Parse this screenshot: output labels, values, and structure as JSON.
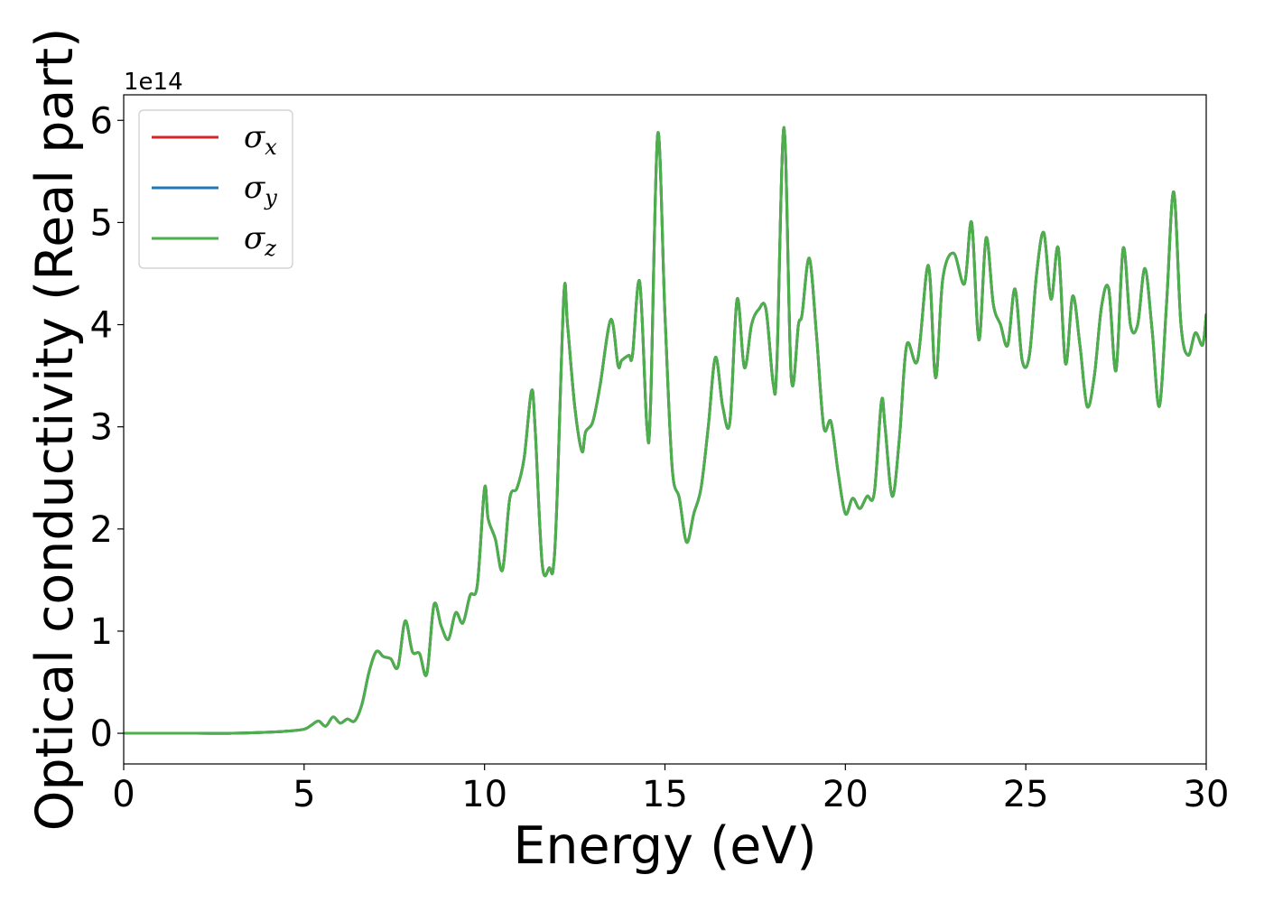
{
  "chart_data": {
    "type": "line",
    "xlabel": "Energy (eV)",
    "ylabel": "Optical conductivity (Real part)",
    "y_offset_label": "1e14",
    "xlim": [
      0,
      30
    ],
    "ylim": [
      -0.3,
      6.25
    ],
    "x_ticks": [
      0,
      5,
      10,
      15,
      20,
      25,
      30
    ],
    "y_ticks": [
      0,
      1,
      2,
      3,
      4,
      5,
      6
    ],
    "grid": false,
    "legend_position": "upper-left",
    "series": [
      {
        "name": "σx",
        "base": "σ",
        "sub": "x",
        "color": "#d62728"
      },
      {
        "name": "σy",
        "base": "σ",
        "sub": "y",
        "color": "#1f77b4"
      },
      {
        "name": "σz",
        "base": "σ",
        "sub": "z",
        "color": "#4daf4a"
      }
    ],
    "x": [
      0,
      1,
      2,
      3,
      4,
      4.5,
      5,
      5.2,
      5.4,
      5.6,
      5.8,
      6.0,
      6.2,
      6.4,
      6.6,
      6.8,
      7.0,
      7.2,
      7.4,
      7.6,
      7.8,
      8.0,
      8.2,
      8.4,
      8.6,
      8.8,
      9.0,
      9.2,
      9.4,
      9.6,
      9.8,
      10.0,
      10.1,
      10.3,
      10.5,
      10.7,
      10.9,
      11.1,
      11.3,
      11.4,
      11.6,
      11.8,
      11.9,
      12.0,
      12.2,
      12.3,
      12.5,
      12.7,
      12.8,
      13.0,
      13.2,
      13.5,
      13.7,
      13.8,
      14.0,
      14.1,
      14.3,
      14.5,
      14.6,
      14.8,
      15.0,
      15.2,
      15.4,
      15.6,
      15.8,
      16.0,
      16.2,
      16.4,
      16.6,
      16.8,
      17.0,
      17.2,
      17.4,
      17.6,
      17.8,
      18.0,
      18.1,
      18.3,
      18.5,
      18.7,
      18.8,
      19.0,
      19.2,
      19.4,
      19.6,
      19.8,
      20.0,
      20.2,
      20.4,
      20.6,
      20.8,
      21.0,
      21.1,
      21.3,
      21.5,
      21.7,
      22.0,
      22.3,
      22.5,
      22.7,
      23.0,
      23.3,
      23.5,
      23.7,
      23.9,
      24.1,
      24.3,
      24.5,
      24.7,
      24.9,
      25.1,
      25.3,
      25.5,
      25.7,
      25.9,
      26.1,
      26.3,
      26.5,
      26.7,
      26.9,
      27.1,
      27.3,
      27.5,
      27.7,
      27.9,
      28.1,
      28.3,
      28.5,
      28.7,
      28.9,
      29.1,
      29.3,
      29.5,
      29.7,
      29.9,
      30.0
    ],
    "values": [
      0,
      0,
      0,
      0,
      0.01,
      0.02,
      0.04,
      0.08,
      0.12,
      0.07,
      0.16,
      0.1,
      0.14,
      0.12,
      0.28,
      0.6,
      0.8,
      0.75,
      0.73,
      0.65,
      1.1,
      0.8,
      0.78,
      0.58,
      1.26,
      1.05,
      0.92,
      1.18,
      1.08,
      1.35,
      1.45,
      2.4,
      2.1,
      1.9,
      1.6,
      2.3,
      2.4,
      2.7,
      3.35,
      3.0,
      1.65,
      1.62,
      1.6,
      2.2,
      4.3,
      4.0,
      3.2,
      2.76,
      2.95,
      3.05,
      3.4,
      4.05,
      3.6,
      3.65,
      3.7,
      3.7,
      4.42,
      3.0,
      3.2,
      5.87,
      4.1,
      2.6,
      2.3,
      1.87,
      2.15,
      2.4,
      3.0,
      3.68,
      3.2,
      3.05,
      4.25,
      3.58,
      4.0,
      4.15,
      4.15,
      3.42,
      3.6,
      5.93,
      3.48,
      4.0,
      4.1,
      4.65,
      3.9,
      3.0,
      3.05,
      2.55,
      2.15,
      2.3,
      2.2,
      2.32,
      2.35,
      3.25,
      3.0,
      2.32,
      2.9,
      3.8,
      3.65,
      4.58,
      3.48,
      4.45,
      4.7,
      4.4,
      5.0,
      3.85,
      4.85,
      4.2,
      4.0,
      3.8,
      4.35,
      3.65,
      3.7,
      4.5,
      4.9,
      4.25,
      4.75,
      3.62,
      4.28,
      3.8,
      3.2,
      3.5,
      4.18,
      4.35,
      3.55,
      4.75,
      4.0,
      4.0,
      4.55,
      3.95,
      3.2,
      4.2,
      5.3,
      4.0,
      3.7,
      3.92,
      3.8,
      4.1
    ]
  }
}
